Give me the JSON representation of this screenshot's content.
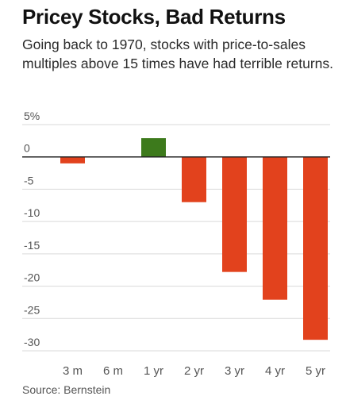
{
  "title": "Pricey Stocks, Bad Returns",
  "subtitle": "Going back to 1970, stocks with price-to-sales multiples above 15 times have had terrible returns.",
  "source": "Source: Bernstein",
  "colors": {
    "negative": "#e2421d",
    "positive": "#3d7a1c",
    "grid": "#d9d9d9",
    "zero_line": "#222222",
    "tick_text": "#555555"
  },
  "chart_data": {
    "type": "bar",
    "title": "Pricey Stocks, Bad Returns",
    "categories": [
      "3 m",
      "6 m",
      "1 yr",
      "2 yr",
      "3 yr",
      "4 yr",
      "5 yr"
    ],
    "values": [
      -1.0,
      0,
      2.9,
      -7.0,
      -17.8,
      -22.1,
      -28.3
    ],
    "ylim": [
      -30,
      5
    ],
    "yticks": [
      5,
      0,
      -5,
      -10,
      -15,
      -20,
      -25,
      -30
    ],
    "ytick_labels": [
      "5%",
      "0",
      "-5",
      "-10",
      "-15",
      "-20",
      "-25",
      "-30"
    ],
    "xlabel": "",
    "ylabel": "",
    "grid": true,
    "legend": "none"
  }
}
